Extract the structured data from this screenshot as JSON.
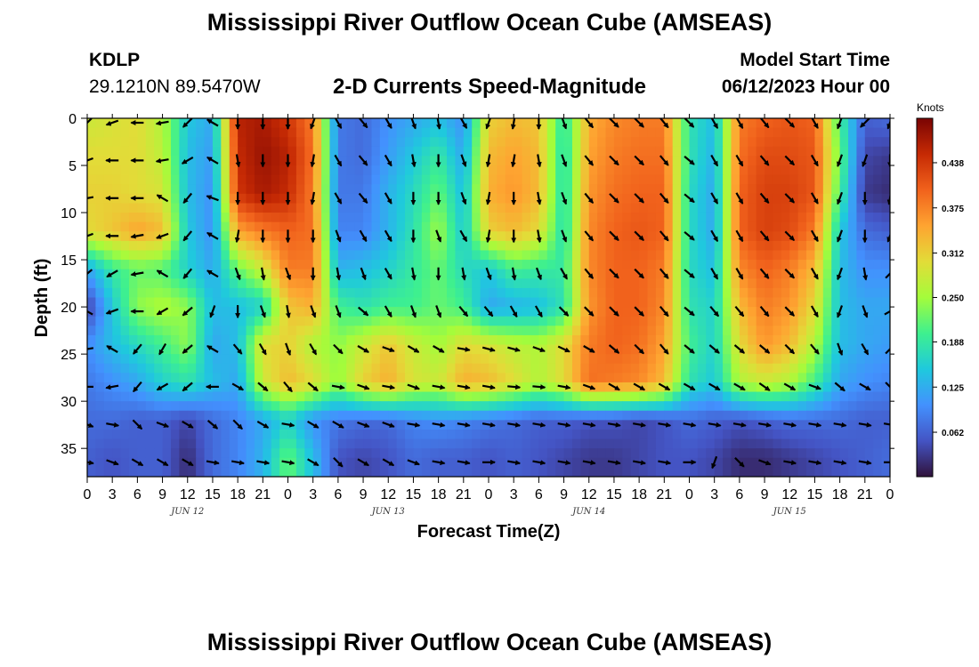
{
  "page": {
    "title": "Mississippi River Outflow Ocean Cube (AMSEAS)",
    "station": "KDLP",
    "coords": "29.1210N  89.5470W",
    "subtitle": "2-D Currents Speed-Magnitude",
    "model_start_label": "Model Start Time",
    "model_start_value": "06/12/2023 Hour 00",
    "footer_title": "Mississippi River Outflow Ocean Cube (AMSEAS)"
  },
  "colors": {
    "scale": [
      "#30123b",
      "#4454c4",
      "#4391fe",
      "#1fc9dd",
      "#3ef08f",
      "#a4fc3b",
      "#e2dc38",
      "#fea431",
      "#f1621c",
      "#c62a04",
      "#7a0403"
    ]
  },
  "chart_data": {
    "type": "heatmap",
    "xlabel": "Forecast Time(Z)",
    "ylabel": "Depth (ft)",
    "x_tick_labels": [
      "0",
      "3",
      "6",
      "9",
      "12",
      "15",
      "18",
      "21",
      "0",
      "3",
      "6",
      "9",
      "12",
      "15",
      "18",
      "21",
      "0",
      "3",
      "6",
      "9",
      "12",
      "15",
      "18",
      "21",
      "0",
      "3",
      "6",
      "9",
      "12",
      "15",
      "18",
      "21",
      "0"
    ],
    "day_labels": [
      {
        "label": "JUN 12",
        "hour": 12
      },
      {
        "label": "JUN 13",
        "hour": 36
      },
      {
        "label": "JUN 14",
        "hour": 60
      },
      {
        "label": "JUN 15",
        "hour": 84
      }
    ],
    "xlim": [
      0,
      96
    ],
    "y_ticks": [
      0,
      5,
      10,
      15,
      20,
      25,
      30,
      35
    ],
    "ylim": [
      0,
      38
    ],
    "y_inverted": true,
    "colorbar": {
      "title": "Knots",
      "ticks": [
        "0.062",
        "0.125",
        "0.188",
        "0.250",
        "0.312",
        "0.375",
        "0.438"
      ],
      "range": [
        0,
        0.5
      ]
    },
    "sample_hours": [
      0,
      3,
      6,
      9,
      12,
      15,
      18,
      21,
      24,
      27,
      30,
      33,
      36,
      39,
      42,
      45,
      48,
      51,
      54,
      57,
      60,
      63,
      66,
      69,
      72,
      75,
      78,
      81,
      84,
      87,
      90,
      93,
      96
    ],
    "sample_depths": [
      0,
      4,
      8,
      12,
      16,
      20,
      24,
      28,
      32,
      36
    ],
    "speed_knots": [
      [
        0.28,
        0.29,
        0.3,
        0.26,
        0.15,
        0.12,
        0.46,
        0.47,
        0.44,
        0.38,
        0.08,
        0.07,
        0.1,
        0.12,
        0.14,
        0.1,
        0.31,
        0.33,
        0.32,
        0.18,
        0.34,
        0.37,
        0.38,
        0.38,
        0.18,
        0.14,
        0.38,
        0.4,
        0.41,
        0.4,
        0.2,
        0.06,
        0.07
      ],
      [
        0.3,
        0.3,
        0.3,
        0.27,
        0.14,
        0.11,
        0.45,
        0.48,
        0.46,
        0.39,
        0.08,
        0.07,
        0.11,
        0.15,
        0.19,
        0.12,
        0.33,
        0.35,
        0.33,
        0.17,
        0.35,
        0.38,
        0.39,
        0.39,
        0.18,
        0.13,
        0.39,
        0.42,
        0.42,
        0.41,
        0.22,
        0.04,
        0.03
      ],
      [
        0.31,
        0.31,
        0.3,
        0.29,
        0.14,
        0.1,
        0.44,
        0.47,
        0.45,
        0.38,
        0.08,
        0.08,
        0.13,
        0.17,
        0.22,
        0.14,
        0.34,
        0.36,
        0.33,
        0.17,
        0.36,
        0.39,
        0.4,
        0.4,
        0.17,
        0.12,
        0.4,
        0.43,
        0.43,
        0.41,
        0.2,
        0.03,
        0.02
      ],
      [
        0.3,
        0.32,
        0.35,
        0.33,
        0.15,
        0.1,
        0.35,
        0.38,
        0.4,
        0.39,
        0.09,
        0.09,
        0.13,
        0.18,
        0.25,
        0.15,
        0.31,
        0.33,
        0.3,
        0.17,
        0.37,
        0.4,
        0.41,
        0.4,
        0.17,
        0.12,
        0.4,
        0.43,
        0.42,
        0.38,
        0.15,
        0.07,
        0.06
      ],
      [
        0.12,
        0.19,
        0.22,
        0.21,
        0.16,
        0.12,
        0.22,
        0.28,
        0.38,
        0.38,
        0.13,
        0.14,
        0.16,
        0.19,
        0.22,
        0.17,
        0.15,
        0.2,
        0.19,
        0.19,
        0.37,
        0.4,
        0.4,
        0.38,
        0.17,
        0.14,
        0.37,
        0.4,
        0.38,
        0.33,
        0.14,
        0.1,
        0.1
      ],
      [
        0.03,
        0.15,
        0.24,
        0.26,
        0.24,
        0.14,
        0.14,
        0.16,
        0.32,
        0.34,
        0.2,
        0.18,
        0.2,
        0.2,
        0.22,
        0.2,
        0.12,
        0.13,
        0.14,
        0.18,
        0.36,
        0.4,
        0.4,
        0.37,
        0.18,
        0.16,
        0.33,
        0.38,
        0.36,
        0.3,
        0.14,
        0.12,
        0.12
      ],
      [
        0.1,
        0.14,
        0.17,
        0.2,
        0.24,
        0.12,
        0.14,
        0.3,
        0.31,
        0.26,
        0.24,
        0.28,
        0.32,
        0.28,
        0.25,
        0.3,
        0.29,
        0.27,
        0.26,
        0.3,
        0.38,
        0.4,
        0.39,
        0.35,
        0.2,
        0.16,
        0.3,
        0.36,
        0.33,
        0.26,
        0.14,
        0.12,
        0.11
      ],
      [
        0.08,
        0.1,
        0.12,
        0.16,
        0.18,
        0.14,
        0.12,
        0.28,
        0.33,
        0.3,
        0.24,
        0.31,
        0.34,
        0.29,
        0.28,
        0.34,
        0.33,
        0.3,
        0.26,
        0.3,
        0.39,
        0.38,
        0.37,
        0.33,
        0.18,
        0.15,
        0.26,
        0.28,
        0.26,
        0.2,
        0.12,
        0.1,
        0.09
      ],
      [
        0.07,
        0.07,
        0.06,
        0.06,
        0.04,
        0.07,
        0.09,
        0.12,
        0.16,
        0.1,
        0.08,
        0.07,
        0.07,
        0.09,
        0.1,
        0.09,
        0.08,
        0.07,
        0.06,
        0.06,
        0.05,
        0.05,
        0.04,
        0.05,
        0.07,
        0.06,
        0.05,
        0.06,
        0.07,
        0.07,
        0.07,
        0.06,
        0.06
      ],
      [
        0.06,
        0.05,
        0.06,
        0.06,
        0.02,
        0.07,
        0.09,
        0.13,
        0.22,
        0.14,
        0.05,
        0.04,
        0.05,
        0.07,
        0.06,
        0.06,
        0.05,
        0.06,
        0.05,
        0.04,
        0.03,
        0.03,
        0.04,
        0.05,
        0.05,
        0.04,
        0.02,
        0.02,
        0.03,
        0.04,
        0.05,
        0.06,
        0.07
      ]
    ],
    "direction_deg": [
      [
        225,
        250,
        270,
        260,
        225,
        300,
        180,
        180,
        180,
        200,
        150,
        140,
        150,
        160,
        170,
        150,
        200,
        190,
        180,
        160,
        140,
        135,
        135,
        140,
        135,
        150,
        150,
        140,
        135,
        150,
        200,
        225,
        200
      ],
      [
        250,
        270,
        270,
        260,
        240,
        300,
        170,
        180,
        180,
        190,
        150,
        140,
        150,
        170,
        180,
        160,
        190,
        190,
        170,
        160,
        140,
        135,
        135,
        140,
        130,
        150,
        150,
        140,
        135,
        150,
        200,
        200,
        180
      ],
      [
        260,
        270,
        270,
        300,
        220,
        290,
        180,
        180,
        180,
        190,
        150,
        140,
        150,
        180,
        180,
        160,
        190,
        180,
        170,
        160,
        140,
        135,
        135,
        140,
        130,
        150,
        150,
        140,
        135,
        150,
        200,
        180,
        190
      ],
      [
        250,
        270,
        260,
        250,
        220,
        300,
        190,
        180,
        180,
        180,
        160,
        150,
        150,
        180,
        160,
        150,
        190,
        180,
        170,
        160,
        140,
        135,
        135,
        140,
        130,
        150,
        150,
        140,
        135,
        150,
        200,
        180,
        200
      ],
      [
        230,
        240,
        260,
        300,
        220,
        300,
        160,
        170,
        160,
        180,
        170,
        160,
        150,
        170,
        180,
        170,
        160,
        170,
        160,
        150,
        140,
        135,
        135,
        140,
        130,
        150,
        150,
        140,
        135,
        150,
        200,
        170,
        45
      ],
      [
        300,
        250,
        270,
        240,
        230,
        200,
        180,
        160,
        170,
        160,
        160,
        130,
        150,
        160,
        160,
        140,
        140,
        150,
        150,
        135,
        135,
        135,
        135,
        140,
        130,
        140,
        140,
        140,
        135,
        150,
        200,
        160,
        60
      ],
      [
        260,
        300,
        220,
        210,
        230,
        300,
        140,
        150,
        160,
        150,
        135,
        120,
        110,
        120,
        120,
        100,
        105,
        105,
        110,
        115,
        120,
        130,
        135,
        140,
        130,
        130,
        130,
        130,
        135,
        140,
        160,
        150,
        45
      ],
      [
        270,
        260,
        220,
        240,
        230,
        270,
        120,
        130,
        140,
        130,
        100,
        110,
        100,
        110,
        100,
        100,
        100,
        95,
        95,
        100,
        110,
        120,
        120,
        120,
        120,
        120,
        120,
        125,
        120,
        110,
        130,
        120,
        135
      ],
      [
        110,
        100,
        135,
        110,
        120,
        130,
        135,
        120,
        100,
        120,
        120,
        110,
        110,
        100,
        100,
        100,
        100,
        100,
        100,
        100,
        100,
        100,
        100,
        100,
        100,
        100,
        100,
        100,
        100,
        100,
        100,
        100,
        100
      ],
      [
        100,
        110,
        120,
        120,
        120,
        100,
        100,
        100,
        100,
        120,
        135,
        120,
        120,
        110,
        100,
        100,
        90,
        100,
        100,
        100,
        100,
        100,
        100,
        100,
        90,
        200,
        135,
        110,
        100,
        100,
        100,
        100,
        90
      ]
    ]
  }
}
